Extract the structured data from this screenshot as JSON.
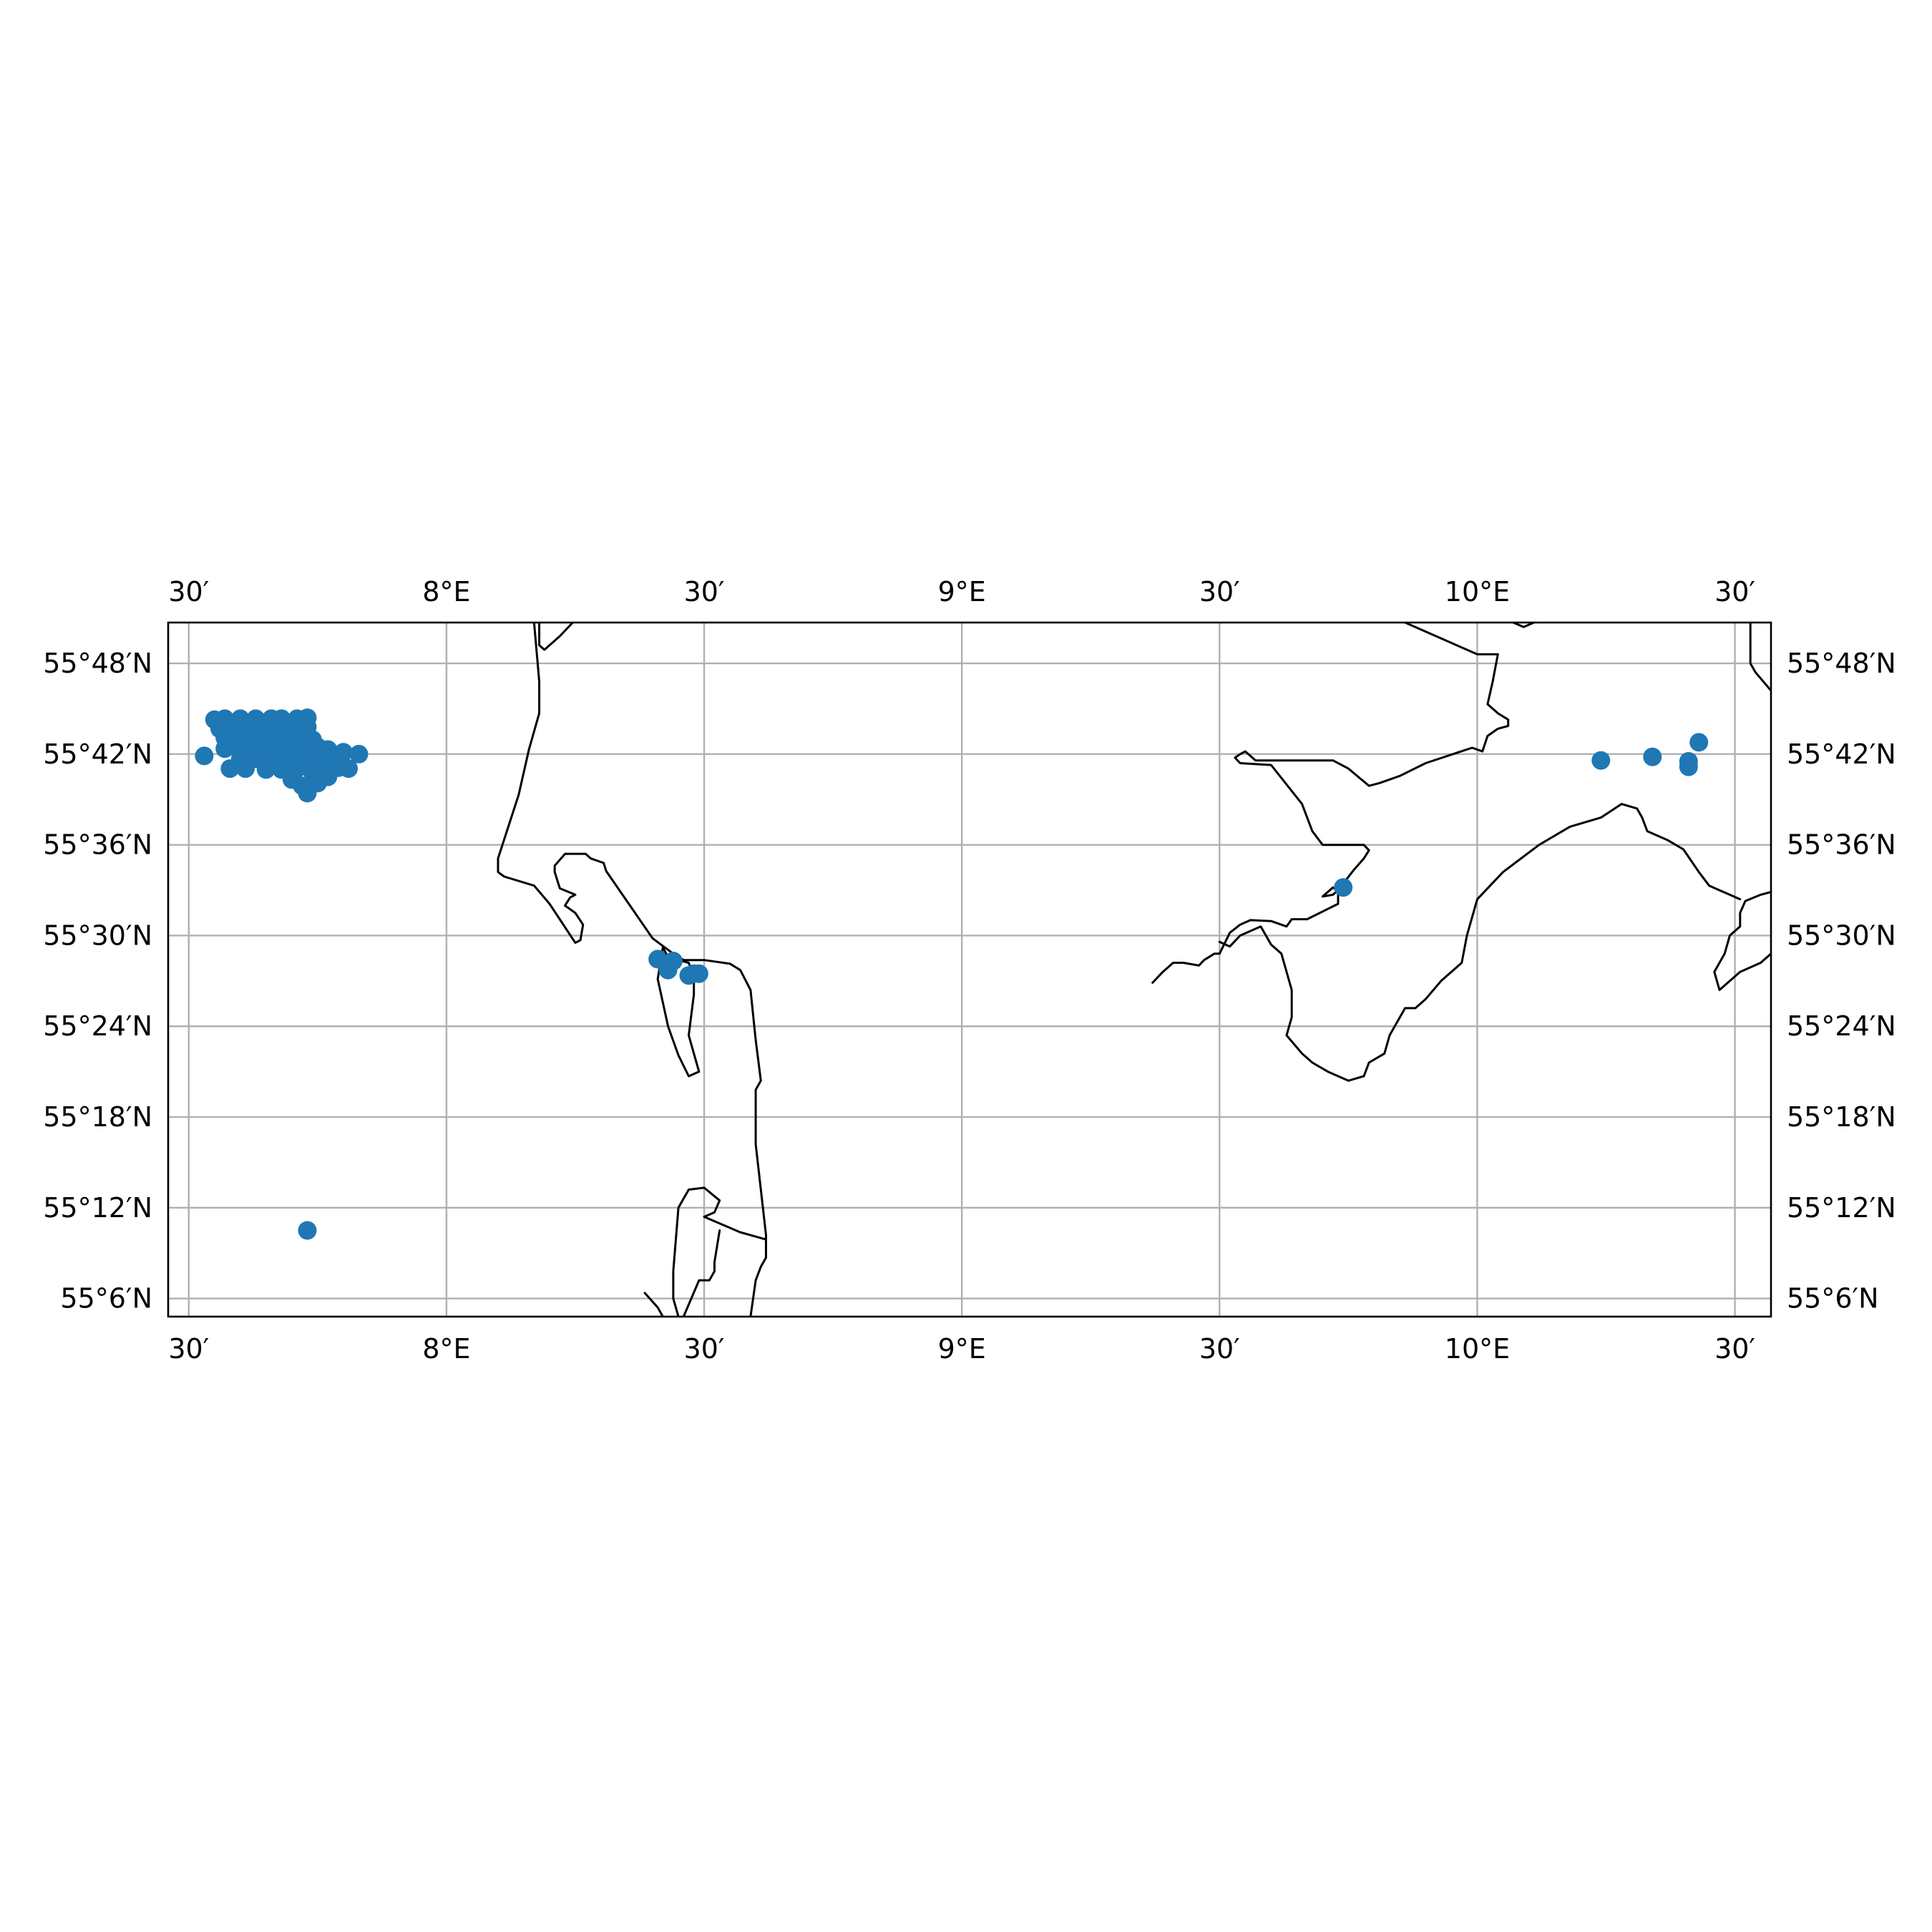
{
  "map": {
    "type": "scatter-map",
    "projection": "PlateCarree",
    "extent": {
      "lon": [
        7.46,
        10.57
      ],
      "lat": [
        55.08,
        55.845
      ]
    },
    "grid": true,
    "colors": {
      "points": "#1f77b4",
      "coast": "#000000",
      "grid": "#b0b0b0",
      "frame": "#000000"
    }
  },
  "axes": {
    "lon_ticks": [
      {
        "value": 7.5,
        "label": "30′"
      },
      {
        "value": 8.0,
        "label": "8°E"
      },
      {
        "value": 8.5,
        "label": "30′"
      },
      {
        "value": 9.0,
        "label": "9°E"
      },
      {
        "value": 9.5,
        "label": "30′"
      },
      {
        "value": 10.0,
        "label": "10°E"
      },
      {
        "value": 10.5,
        "label": "30′"
      }
    ],
    "lat_ticks": [
      {
        "value": 55.8,
        "label": "55°48′N"
      },
      {
        "value": 55.7,
        "label": "55°42′N"
      },
      {
        "value": 55.6,
        "label": "55°36′N"
      },
      {
        "value": 55.5,
        "label": "55°30′N"
      },
      {
        "value": 55.4,
        "label": "55°24′N"
      },
      {
        "value": 55.3,
        "label": "55°18′N"
      },
      {
        "value": 55.2,
        "label": "55°12′N"
      },
      {
        "value": 55.1,
        "label": "55°6′N"
      }
    ]
  },
  "chart_data": {
    "type": "scatter",
    "xlabel": "",
    "ylabel": "",
    "xlim": [
      7.46,
      10.57
    ],
    "ylim": [
      55.08,
      55.845
    ],
    "series": [
      {
        "points": [
          [
            7.55,
            55.738
          ],
          [
            7.57,
            55.739
          ],
          [
            7.6,
            55.739
          ],
          [
            7.63,
            55.739
          ],
          [
            7.66,
            55.739
          ],
          [
            7.68,
            55.739
          ],
          [
            7.71,
            55.739
          ],
          [
            7.73,
            55.74
          ],
          [
            7.56,
            55.728
          ],
          [
            7.58,
            55.728
          ],
          [
            7.61,
            55.728
          ],
          [
            7.64,
            55.728
          ],
          [
            7.67,
            55.728
          ],
          [
            7.7,
            55.728
          ],
          [
            7.73,
            55.73
          ],
          [
            7.57,
            55.718
          ],
          [
            7.59,
            55.718
          ],
          [
            7.62,
            55.718
          ],
          [
            7.65,
            55.718
          ],
          [
            7.68,
            55.718
          ],
          [
            7.71,
            55.715
          ],
          [
            7.74,
            55.716
          ],
          [
            7.75,
            55.708
          ],
          [
            7.57,
            55.706
          ],
          [
            7.6,
            55.706
          ],
          [
            7.63,
            55.706
          ],
          [
            7.66,
            55.706
          ],
          [
            7.69,
            55.706
          ],
          [
            7.72,
            55.706
          ],
          [
            7.77,
            55.705
          ],
          [
            7.8,
            55.702
          ],
          [
            7.6,
            55.695
          ],
          [
            7.63,
            55.695
          ],
          [
            7.66,
            55.695
          ],
          [
            7.69,
            55.695
          ],
          [
            7.72,
            55.695
          ],
          [
            7.75,
            55.695
          ],
          [
            7.78,
            55.69
          ],
          [
            7.83,
            55.7
          ],
          [
            7.53,
            55.698
          ],
          [
            7.58,
            55.684
          ],
          [
            7.61,
            55.684
          ],
          [
            7.65,
            55.683
          ],
          [
            7.68,
            55.683
          ],
          [
            7.71,
            55.684
          ],
          [
            7.74,
            55.684
          ],
          [
            7.77,
            55.675
          ],
          [
            7.7,
            55.672
          ],
          [
            7.72,
            55.665
          ],
          [
            7.73,
            55.657
          ],
          [
            7.75,
            55.668
          ],
          [
            7.74,
            55.68
          ],
          [
            7.76,
            55.69
          ],
          [
            7.79,
            55.685
          ],
          [
            7.81,
            55.684
          ],
          [
            7.73,
            55.175
          ],
          [
            8.41,
            55.474
          ],
          [
            8.43,
            55.469
          ],
          [
            8.44,
            55.472
          ],
          [
            8.43,
            55.462
          ],
          [
            8.47,
            55.456
          ],
          [
            8.48,
            55.458
          ],
          [
            8.49,
            55.458
          ],
          [
            9.74,
            55.553
          ],
          [
            10.24,
            55.693
          ],
          [
            10.34,
            55.697
          ],
          [
            10.41,
            55.692
          ],
          [
            10.41,
            55.686
          ],
          [
            10.43,
            55.713
          ]
        ]
      }
    ]
  },
  "coastlines": [
    [
      [
        8.17,
        55.845
      ],
      [
        8.18,
        55.78
      ],
      [
        8.18,
        55.745
      ],
      [
        8.16,
        55.705
      ],
      [
        8.14,
        55.655
      ],
      [
        8.12,
        55.62
      ],
      [
        8.1,
        55.585
      ],
      [
        8.1,
        55.57
      ],
      [
        8.112,
        55.565
      ],
      [
        8.17,
        55.555
      ],
      [
        8.2,
        55.535
      ],
      [
        8.25,
        55.492
      ],
      [
        8.26,
        55.495
      ],
      [
        8.265,
        55.512
      ],
      [
        8.25,
        55.525
      ],
      [
        8.23,
        55.533
      ],
      [
        8.24,
        55.542
      ],
      [
        8.25,
        55.545
      ],
      [
        8.22,
        55.552
      ],
      [
        8.21,
        55.57
      ],
      [
        8.21,
        55.577
      ],
      [
        8.23,
        55.59
      ],
      [
        8.27,
        55.59
      ],
      [
        8.28,
        55.585
      ],
      [
        8.305,
        55.58
      ],
      [
        8.31,
        55.571
      ],
      [
        8.4,
        55.497
      ],
      [
        8.44,
        55.48
      ],
      [
        8.46,
        55.473
      ],
      [
        8.5,
        55.473
      ],
      [
        8.55,
        55.469
      ],
      [
        8.57,
        55.462
      ],
      [
        8.59,
        55.44
      ],
      [
        8.6,
        55.385
      ],
      [
        8.61,
        55.34
      ],
      [
        8.6,
        55.33
      ],
      [
        8.6,
        55.27
      ],
      [
        8.61,
        55.22
      ],
      [
        8.62,
        55.17
      ],
      [
        8.62,
        55.145
      ],
      [
        8.61,
        55.135
      ],
      [
        8.6,
        55.12
      ],
      [
        8.59,
        55.08
      ]
    ],
    [
      [
        8.245,
        55.845
      ],
      [
        8.22,
        55.83
      ],
      [
        8.19,
        55.815
      ],
      [
        8.18,
        55.82
      ],
      [
        8.18,
        55.845
      ]
    ],
    [
      [
        8.42,
        55.487
      ],
      [
        8.41,
        55.452
      ],
      [
        8.43,
        55.4
      ],
      [
        8.45,
        55.368
      ],
      [
        8.47,
        55.345
      ],
      [
        8.49,
        55.35
      ],
      [
        8.48,
        55.37
      ],
      [
        8.47,
        55.39
      ],
      [
        8.48,
        55.435
      ],
      [
        8.48,
        55.455
      ],
      [
        8.47,
        55.47
      ],
      [
        8.43,
        55.476
      ],
      [
        8.42,
        55.487
      ]
    ],
    [
      [
        8.385,
        55.106
      ],
      [
        8.41,
        55.09
      ],
      [
        8.42,
        55.08
      ]
    ],
    [
      [
        8.45,
        55.08
      ],
      [
        8.44,
        55.1
      ],
      [
        8.44,
        55.13
      ],
      [
        8.45,
        55.2
      ],
      [
        8.47,
        55.22
      ],
      [
        8.5,
        55.222
      ],
      [
        8.53,
        55.208
      ],
      [
        8.52,
        55.195
      ],
      [
        8.5,
        55.19
      ],
      [
        8.57,
        55.173
      ],
      [
        8.62,
        55.165
      ]
    ],
    [
      [
        8.46,
        55.08
      ],
      [
        8.49,
        55.12
      ],
      [
        8.51,
        55.12
      ],
      [
        8.52,
        55.13
      ],
      [
        8.52,
        55.14
      ],
      [
        8.53,
        55.175
      ]
    ],
    [
      [
        9.86,
        55.845
      ],
      [
        10.0,
        55.81
      ],
      [
        10.04,
        55.81
      ],
      [
        10.03,
        55.78
      ],
      [
        10.02,
        55.755
      ],
      [
        10.04,
        55.745
      ],
      [
        10.06,
        55.738
      ],
      [
        10.06,
        55.731
      ],
      [
        10.04,
        55.728
      ],
      [
        10.02,
        55.72
      ],
      [
        10.01,
        55.703
      ],
      [
        9.99,
        55.707
      ],
      [
        9.9,
        55.69
      ],
      [
        9.85,
        55.676
      ],
      [
        9.81,
        55.668
      ],
      [
        9.79,
        55.665
      ],
      [
        9.75,
        55.684
      ],
      [
        9.72,
        55.693
      ],
      [
        9.68,
        55.693
      ],
      [
        9.57,
        55.693
      ],
      [
        9.55,
        55.703
      ],
      [
        9.54,
        55.7
      ],
      [
        9.53,
        55.696
      ],
      [
        9.54,
        55.69
      ],
      [
        9.6,
        55.688
      ],
      [
        9.66,
        55.645
      ],
      [
        9.68,
        55.615
      ],
      [
        9.7,
        55.6
      ],
      [
        9.75,
        55.6
      ],
      [
        9.78,
        55.6
      ],
      [
        9.79,
        55.594
      ],
      [
        9.78,
        55.585
      ],
      [
        9.76,
        55.572
      ],
      [
        9.73,
        55.55
      ],
      [
        9.72,
        55.545
      ],
      [
        9.7,
        55.543
      ],
      [
        9.72,
        55.553
      ],
      [
        9.73,
        55.549
      ],
      [
        9.73,
        55.535
      ],
      [
        9.67,
        55.518
      ],
      [
        9.64,
        55.518
      ],
      [
        9.63,
        55.51
      ],
      [
        9.6,
        55.516
      ],
      [
        9.56,
        55.517
      ],
      [
        9.54,
        55.512
      ],
      [
        9.52,
        55.503
      ],
      [
        9.5,
        55.48
      ],
      [
        9.49,
        55.48
      ],
      [
        9.47,
        55.473
      ],
      [
        9.46,
        55.467
      ],
      [
        9.43,
        55.47
      ],
      [
        9.41,
        55.47
      ],
      [
        9.39,
        55.46
      ],
      [
        9.37,
        55.448
      ]
    ],
    [
      [
        9.5,
        55.493
      ],
      [
        9.52,
        55.488
      ],
      [
        9.54,
        55.5
      ],
      [
        9.58,
        55.51
      ],
      [
        9.6,
        55.49
      ],
      [
        9.62,
        55.48
      ],
      [
        9.64,
        55.44
      ],
      [
        9.64,
        55.41
      ],
      [
        9.63,
        55.39
      ],
      [
        9.66,
        55.37
      ],
      [
        9.68,
        55.36
      ],
      [
        9.71,
        55.35
      ],
      [
        9.75,
        55.34
      ],
      [
        9.78,
        55.345
      ],
      [
        9.79,
        55.36
      ],
      [
        9.82,
        55.37
      ],
      [
        9.83,
        55.39
      ],
      [
        9.86,
        55.42
      ],
      [
        9.88,
        55.42
      ],
      [
        9.9,
        55.43
      ],
      [
        9.93,
        55.45
      ],
      [
        9.97,
        55.47
      ],
      [
        9.98,
        55.5
      ],
      [
        10.0,
        55.54
      ],
      [
        10.05,
        55.57
      ],
      [
        10.12,
        55.6
      ],
      [
        10.18,
        55.62
      ],
      [
        10.24,
        55.63
      ],
      [
        10.28,
        55.645
      ],
      [
        10.31,
        55.64
      ],
      [
        10.32,
        55.63
      ],
      [
        10.33,
        55.615
      ],
      [
        10.37,
        55.605
      ],
      [
        10.4,
        55.595
      ],
      [
        10.43,
        55.57
      ],
      [
        10.45,
        55.555
      ],
      [
        10.47,
        55.55
      ],
      [
        10.49,
        55.545
      ],
      [
        10.51,
        55.54
      ]
    ],
    [
      [
        10.57,
        55.77
      ],
      [
        10.54,
        55.79
      ],
      [
        10.53,
        55.8
      ],
      [
        10.53,
        55.845
      ]
    ],
    [
      [
        10.07,
        55.845
      ],
      [
        10.09,
        55.84
      ],
      [
        10.11,
        55.845
      ]
    ],
    [
      [
        10.57,
        55.48
      ],
      [
        10.55,
        55.47
      ],
      [
        10.51,
        55.46
      ],
      [
        10.47,
        55.44
      ],
      [
        10.46,
        55.46
      ],
      [
        10.48,
        55.48
      ],
      [
        10.49,
        55.5
      ],
      [
        10.51,
        55.51
      ],
      [
        10.51,
        55.525
      ],
      [
        10.52,
        55.538
      ],
      [
        10.55,
        55.545
      ],
      [
        10.57,
        55.548
      ]
    ]
  ]
}
